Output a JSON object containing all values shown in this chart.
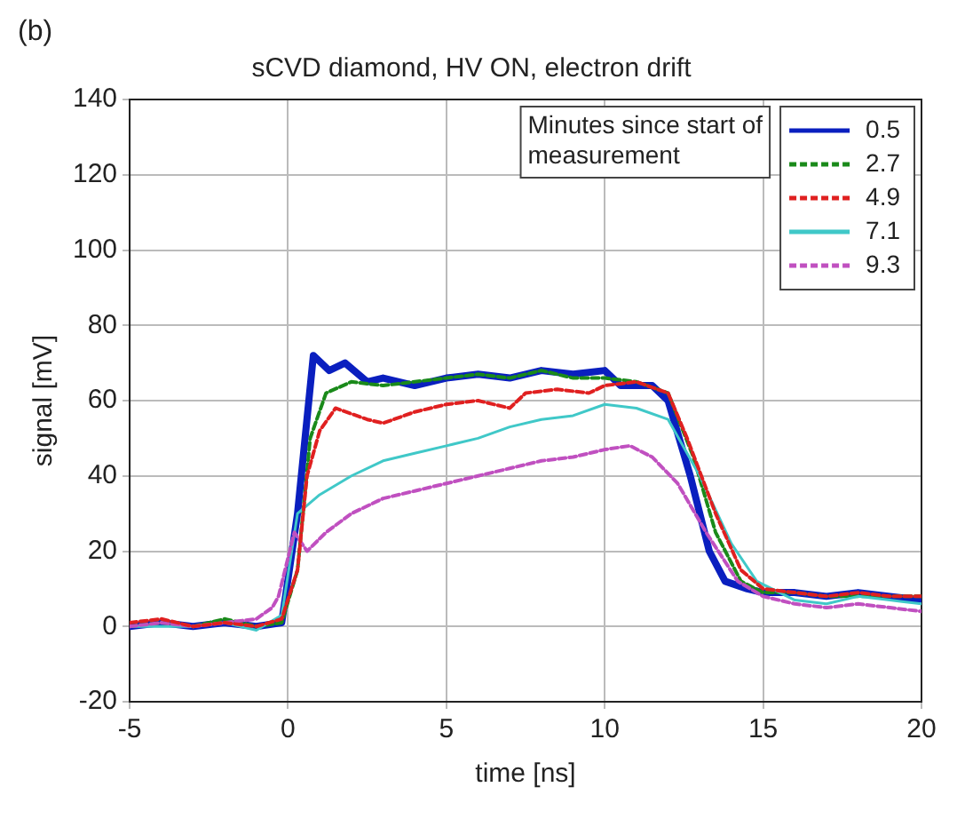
{
  "chart_data": {
    "type": "line",
    "title": "sCVD diamond, HV ON, electron drift",
    "xlabel": "time [ns]",
    "ylabel": "signal [mV]",
    "legend_title": "Minutes since start of measurement",
    "annotations": [
      "(b)"
    ],
    "xlim": [
      -5,
      20
    ],
    "xticks": [
      -5,
      0,
      5,
      10,
      15,
      20
    ],
    "ylim": [
      -20,
      140
    ],
    "yticks": [
      -20,
      0,
      20,
      40,
      60,
      80,
      100,
      120,
      140
    ],
    "grid": true,
    "legend": "top right",
    "marker": "none",
    "series": [
      {
        "name": "0.5",
        "color": "#0a1fbf",
        "line_style": "solid",
        "x": [
          -5,
          -4,
          -3,
          -2,
          -1,
          -0.2,
          0.3,
          0.8,
          1.3,
          1.8,
          2.5,
          3,
          4,
          5,
          6,
          7,
          8,
          9,
          10,
          10.5,
          11.5,
          12,
          12.7,
          13.3,
          13.8,
          14.5,
          15,
          16,
          17,
          18,
          19,
          20
        ],
        "values": [
          0,
          1,
          0,
          1,
          0,
          1,
          30,
          72,
          68,
          70,
          65,
          66,
          64,
          66,
          67,
          66,
          68,
          67,
          68,
          64,
          64,
          60,
          40,
          20,
          12,
          10,
          9,
          9,
          8,
          9,
          8,
          7
        ]
      },
      {
        "name": "2.7",
        "color": "#1a8a1a",
        "line_style": "dashed",
        "x": [
          -5,
          -4,
          -3,
          -2,
          -1,
          -0.2,
          0.3,
          0.7,
          1.2,
          2,
          3,
          4,
          5,
          6,
          7,
          8,
          9,
          10,
          11,
          12,
          12.8,
          13.5,
          14.3,
          15,
          16,
          17,
          18,
          19,
          20
        ],
        "values": [
          0,
          1,
          0,
          2,
          0,
          1,
          15,
          50,
          62,
          65,
          64,
          65,
          66,
          67,
          66,
          68,
          66,
          66,
          65,
          62,
          45,
          25,
          12,
          9,
          9,
          8,
          8,
          8,
          8
        ]
      },
      {
        "name": "4.9",
        "color": "#e02020",
        "line_style": "dashed",
        "x": [
          -5,
          -4,
          -3,
          -2,
          -1,
          -0.2,
          0.3,
          0.6,
          1,
          1.5,
          2.5,
          3,
          4,
          5,
          6,
          7,
          7.5,
          8.5,
          9.5,
          10,
          11,
          12,
          12.6,
          13.5,
          14.3,
          15,
          16,
          17,
          18,
          19,
          20
        ],
        "values": [
          1,
          2,
          0,
          1,
          0,
          2,
          15,
          40,
          52,
          58,
          55,
          54,
          57,
          59,
          60,
          58,
          62,
          63,
          62,
          64,
          65,
          62,
          50,
          30,
          15,
          10,
          9,
          8,
          9,
          8,
          8
        ]
      },
      {
        "name": "7.1",
        "color": "#40c8c8",
        "line_style": "solid",
        "x": [
          -5,
          -4,
          -3,
          -2,
          -1,
          -0.2,
          0.3,
          1,
          2,
          3,
          4,
          5,
          6,
          7,
          8,
          9,
          10,
          11,
          12,
          13,
          14,
          14.8,
          16,
          17,
          18,
          19,
          20
        ],
        "values": [
          0,
          0,
          0,
          1,
          -1,
          3,
          30,
          35,
          40,
          44,
          46,
          48,
          50,
          53,
          55,
          56,
          59,
          58,
          55,
          40,
          22,
          12,
          7,
          6,
          8,
          7,
          6
        ]
      },
      {
        "name": "9.3",
        "color": "#c050c0",
        "line_style": "dashed",
        "x": [
          -5,
          -4,
          -3,
          -2,
          -1,
          -0.5,
          -0.3,
          0.2,
          0.6,
          1.2,
          2,
          3,
          4,
          5,
          6,
          7,
          8,
          9,
          10,
          10.8,
          11.5,
          12.3,
          13.2,
          14.2,
          15,
          16,
          17,
          18,
          19,
          20
        ],
        "values": [
          0,
          1,
          0,
          1,
          2,
          5,
          8,
          25,
          20,
          25,
          30,
          34,
          36,
          38,
          40,
          42,
          44,
          45,
          47,
          48,
          45,
          38,
          25,
          12,
          8,
          6,
          5,
          6,
          5,
          4
        ]
      }
    ]
  }
}
